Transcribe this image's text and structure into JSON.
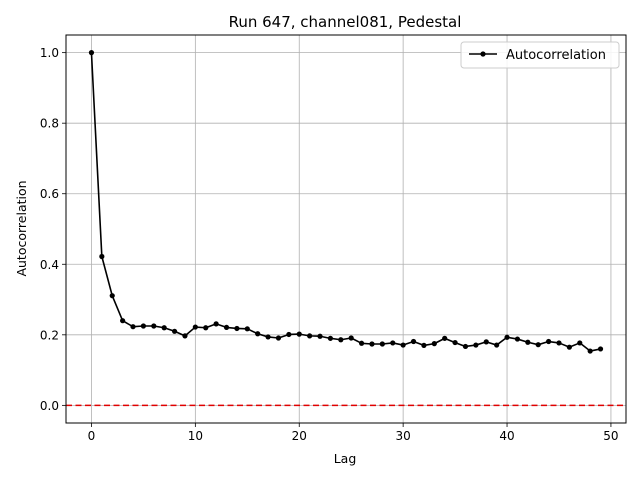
{
  "chart_data": {
    "type": "line",
    "title": "Run 647, channel081, Pedestal",
    "xlabel": "Lag",
    "ylabel": "Autocorrelation",
    "xlim": [
      -2.45,
      51.45
    ],
    "ylim": [
      -0.05,
      1.05
    ],
    "xticks": [
      0,
      10,
      20,
      30,
      40,
      50
    ],
    "xtick_labels": [
      "0",
      "10",
      "20",
      "30",
      "40",
      "50"
    ],
    "yticks": [
      0.0,
      0.2,
      0.4,
      0.6,
      0.8,
      1.0
    ],
    "ytick_labels": [
      "0.0",
      "0.2",
      "0.4",
      "0.6",
      "0.8",
      "1.0"
    ],
    "grid": true,
    "legend_position": "top-right",
    "series": [
      {
        "name": "Autocorrelation",
        "color": "#000000",
        "marker": "circle",
        "x": [
          0,
          1,
          2,
          3,
          4,
          5,
          6,
          7,
          8,
          9,
          10,
          11,
          12,
          13,
          14,
          15,
          16,
          17,
          18,
          19,
          20,
          21,
          22,
          23,
          24,
          25,
          26,
          27,
          28,
          29,
          30,
          31,
          32,
          33,
          34,
          35,
          36,
          37,
          38,
          39,
          40,
          41,
          42,
          43,
          44,
          45,
          46,
          47,
          48,
          49
        ],
        "y": [
          1.0,
          0.422,
          0.311,
          0.24,
          0.223,
          0.225,
          0.225,
          0.22,
          0.21,
          0.197,
          0.222,
          0.22,
          0.231,
          0.221,
          0.218,
          0.217,
          0.203,
          0.194,
          0.191,
          0.201,
          0.202,
          0.197,
          0.196,
          0.19,
          0.186,
          0.191,
          0.176,
          0.174,
          0.174,
          0.177,
          0.171,
          0.181,
          0.17,
          0.175,
          0.19,
          0.178,
          0.167,
          0.171,
          0.18,
          0.171,
          0.193,
          0.188,
          0.179,
          0.172,
          0.181,
          0.177,
          0.165,
          0.177,
          0.154,
          0.16
        ]
      }
    ],
    "reference_line": {
      "y": 0.0,
      "color": "#e00000",
      "style": "dashed"
    }
  }
}
